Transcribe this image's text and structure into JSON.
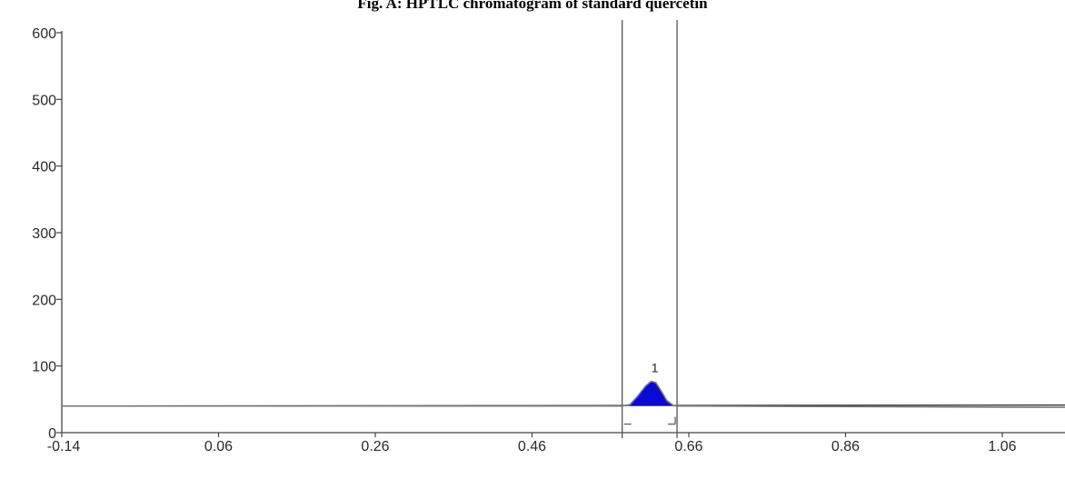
{
  "chart_data": {
    "type": "line",
    "title": "Fig. A: HPTLC chromatogram of standard quercetin",
    "xlabel": "",
    "ylabel": "",
    "xlim": [
      -0.14,
      1.14
    ],
    "ylim": [
      0,
      600
    ],
    "x_ticks": [
      -0.14,
      0.06,
      0.26,
      0.46,
      0.66,
      0.86,
      1.06
    ],
    "x_tick_labels": [
      "-0.14",
      "0.06",
      "0.26",
      "0.46",
      "0.66",
      "0.86",
      "1.06"
    ],
    "y_ticks": [
      0,
      100,
      200,
      300,
      400,
      500,
      600
    ],
    "y_tick_labels": [
      "0",
      "100",
      "200",
      "300",
      "400",
      "500",
      "600"
    ],
    "baseline": 40,
    "integration_window": [
      0.575,
      0.645
    ],
    "series": [
      {
        "x": [
          -0.14,
          0.575,
          0.585,
          0.595,
          0.605,
          0.612,
          0.618,
          0.625,
          0.632,
          0.64,
          0.645,
          1.14
        ],
        "y": [
          40,
          40,
          42,
          55,
          70,
          77,
          75,
          62,
          48,
          41,
          40,
          38
        ]
      }
    ],
    "peaks": [
      {
        "label": "1",
        "x": 0.612,
        "y": 77
      }
    ],
    "grid": false,
    "colors": {
      "peak_fill": "#0a0ad4",
      "line": "#333333",
      "axis": "#444444"
    }
  }
}
